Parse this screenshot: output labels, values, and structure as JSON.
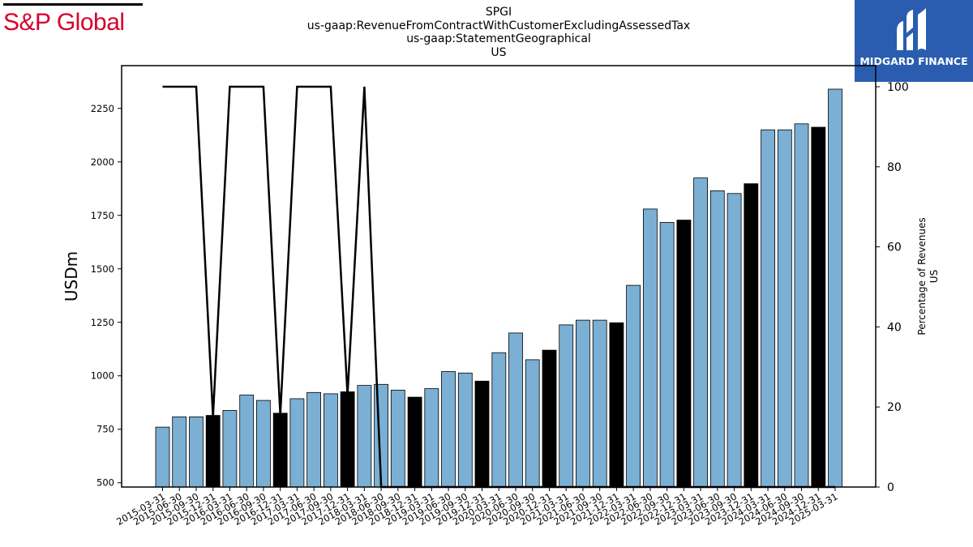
{
  "brand_left": "S&P Global",
  "brand_right": "MIDGARD FINANCE",
  "chart_data": {
    "type": "bar",
    "title": [
      "SPGI",
      "us-gaap:RevenueFromContractWithCustomerExcludingAssessedTax",
      "us-gaap:StatementGeographical",
      "US"
    ],
    "ylabel": "USDm",
    "y2label": [
      "Percentage of Revenues",
      "US"
    ],
    "ylim": [
      480,
      2450
    ],
    "y2lim": [
      0,
      105
    ],
    "yticks": [
      500,
      750,
      1000,
      1250,
      1500,
      1750,
      2000,
      2250
    ],
    "y2ticks": [
      0,
      20,
      40,
      60,
      80,
      100
    ],
    "categories": [
      "2015-03-31",
      "2015-06-30",
      "2015-09-30",
      "2015-12-31",
      "2016-03-31",
      "2016-06-30",
      "2016-09-30",
      "2016-12-31",
      "2017-03-31",
      "2017-06-30",
      "2017-09-30",
      "2017-12-31",
      "2018-03-31",
      "2018-06-30",
      "2018-09-30",
      "2018-12-31",
      "2019-03-31",
      "2019-06-30",
      "2019-09-30",
      "2019-12-31",
      "2020-03-31",
      "2020-06-30",
      "2020-09-30",
      "2020-12-31",
      "2021-03-31",
      "2021-06-30",
      "2021-09-30",
      "2021-12-31",
      "2022-03-31",
      "2022-06-30",
      "2022-09-30",
      "2022-12-31",
      "2023-03-31",
      "2023-06-30",
      "2023-09-30",
      "2023-12-31",
      "2024-03-31",
      "2024-06-30",
      "2024-09-30",
      "2024-12-31",
      "2025-03-31"
    ],
    "series": [
      {
        "type": "bar",
        "values": [
          760,
          808,
          808,
          815,
          838,
          910,
          885,
          825,
          893,
          922,
          916,
          925,
          955,
          960,
          933,
          900,
          940,
          1020,
          1013,
          975,
          1108,
          1200,
          1075,
          1120,
          1238,
          1260,
          1260,
          1248,
          1423,
          1780,
          1717,
          1728,
          1925,
          1865,
          1852,
          1898,
          2150,
          2150,
          2178,
          2162,
          2340
        ],
        "annual_flags": [
          0,
          0,
          0,
          1,
          0,
          0,
          0,
          1,
          0,
          0,
          0,
          1,
          0,
          0,
          0,
          1,
          0,
          0,
          0,
          1,
          0,
          0,
          0,
          1,
          0,
          0,
          0,
          1,
          0,
          0,
          0,
          1,
          0,
          0,
          0,
          1,
          0,
          0,
          0,
          1,
          0
        ]
      },
      {
        "type": "line",
        "axis": "right",
        "values": [
          100,
          100,
          100,
          17.5,
          100,
          100,
          100,
          18,
          100,
          100,
          100,
          23,
          100,
          0,
          0,
          0,
          0,
          0,
          0,
          0,
          0,
          0,
          0,
          0,
          0,
          0,
          0,
          0,
          0,
          0,
          0,
          0,
          0,
          0,
          0,
          0,
          0,
          0,
          0,
          0,
          0
        ]
      }
    ],
    "colors": {
      "bar": "#7bafd4",
      "bar_annual": "#000000",
      "line": "#000000"
    }
  }
}
